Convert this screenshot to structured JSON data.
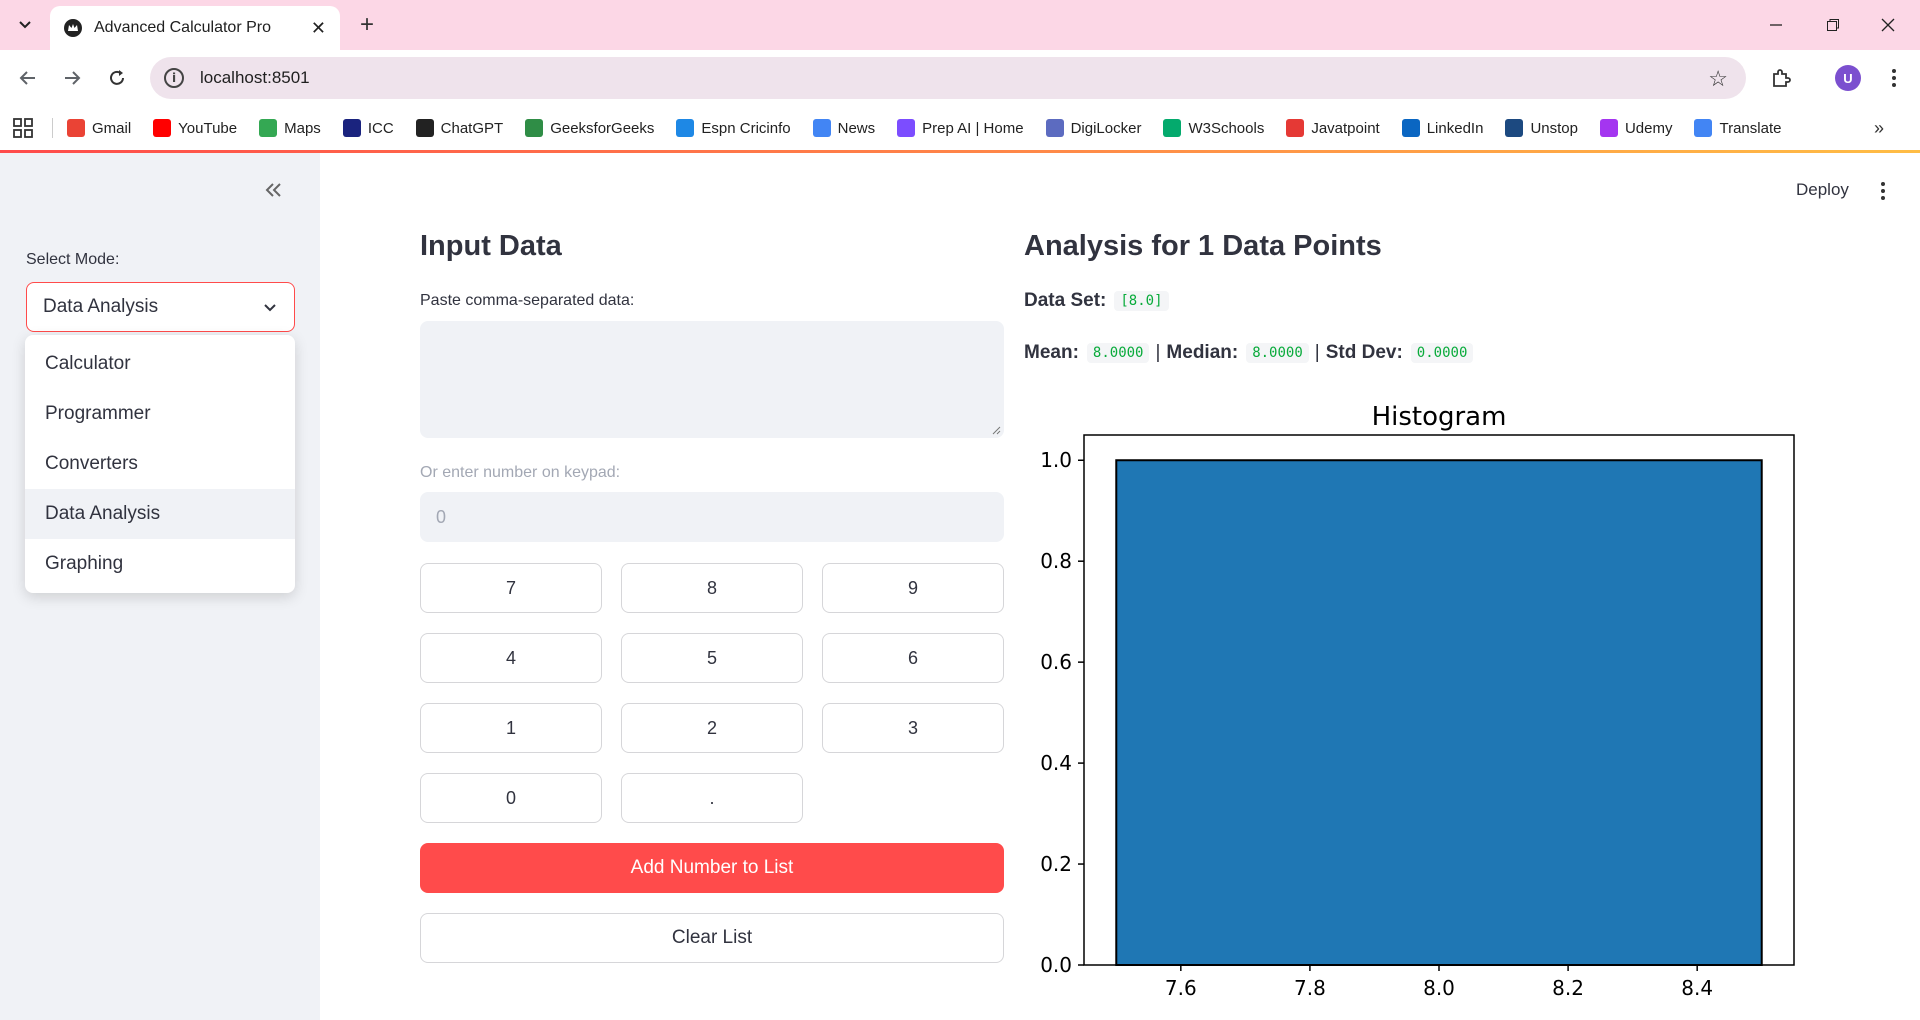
{
  "browser": {
    "tab_title": "Advanced Calculator Pro",
    "url": "localhost:8501",
    "bookmarks": [
      {
        "label": "Gmail",
        "icon": "gmail-icon",
        "color": "#ea4335"
      },
      {
        "label": "YouTube",
        "icon": "youtube-icon",
        "color": "#ff0000"
      },
      {
        "label": "Maps",
        "icon": "maps-icon",
        "color": "#34a853"
      },
      {
        "label": "ICC",
        "icon": "icc-icon",
        "color": "#1a237e"
      },
      {
        "label": "ChatGPT",
        "icon": "chatgpt-icon",
        "color": "#222222"
      },
      {
        "label": "GeeksforGeeks",
        "icon": "geeksforgeeks-icon",
        "color": "#2f8d46"
      },
      {
        "label": "Espn Cricinfo",
        "icon": "espn-cricinfo-icon",
        "color": "#1e88e5"
      },
      {
        "label": "News",
        "icon": "news-icon",
        "color": "#4285f4"
      },
      {
        "label": "Prep AI | Home",
        "icon": "prep-ai-icon",
        "color": "#7c4dff"
      },
      {
        "label": "DigiLocker",
        "icon": "digilocker-icon",
        "color": "#5c6bc0"
      },
      {
        "label": "W3Schools",
        "icon": "w3schools-icon",
        "color": "#04aa6d"
      },
      {
        "label": "Javatpoint",
        "icon": "javatpoint-icon",
        "color": "#e53935"
      },
      {
        "label": "LinkedIn",
        "icon": "linkedin-icon",
        "color": "#0a66c2"
      },
      {
        "label": "Unstop",
        "icon": "unstop-icon",
        "color": "#1c4980"
      },
      {
        "label": "Udemy",
        "icon": "udemy-icon",
        "color": "#a435f0"
      },
      {
        "label": "Translate",
        "icon": "translate-icon",
        "color": "#4285f4"
      }
    ]
  },
  "sidebar": {
    "mode_label": "Select Mode:",
    "selected_mode": "Data Analysis",
    "options": [
      "Calculator",
      "Programmer",
      "Converters",
      "Data Analysis",
      "Graphing"
    ]
  },
  "header": {
    "deploy_label": "Deploy"
  },
  "input": {
    "title": "Input Data",
    "paste_label": "Paste comma-separated data:",
    "keypad_label": "Or enter number on keypad:",
    "keypad_value": "0",
    "keys": [
      "7",
      "8",
      "9",
      "4",
      "5",
      "6",
      "1",
      "2",
      "3",
      "0",
      "."
    ],
    "add_button": "Add Number to List",
    "clear_button": "Clear List"
  },
  "analysis": {
    "title": "Analysis for 1 Data Points",
    "dataset_label": "Data Set:",
    "dataset_value": "[8.0]",
    "mean_label": "Mean:",
    "mean_value": "8.0000",
    "median_label": "Median:",
    "median_value": "8.0000",
    "std_label": "Std Dev:",
    "std_value": "0.0000"
  },
  "colors": {
    "accent": "#ff4b4b",
    "bar": "#1f77b4"
  },
  "chart_data": {
    "type": "bar",
    "title": "Histogram",
    "xlabel": "",
    "ylabel": "",
    "bins": [
      {
        "x0": 7.5,
        "x1": 8.5,
        "count": 1.0
      }
    ],
    "xlim": [
      7.45,
      8.55
    ],
    "ylim": [
      0,
      1.05
    ],
    "xticks": [
      "7.6",
      "7.8",
      "8.0",
      "8.2",
      "8.4"
    ],
    "yticks": [
      "0.0",
      "0.2",
      "0.4",
      "0.6",
      "0.8",
      "1.0"
    ],
    "grid": false
  }
}
